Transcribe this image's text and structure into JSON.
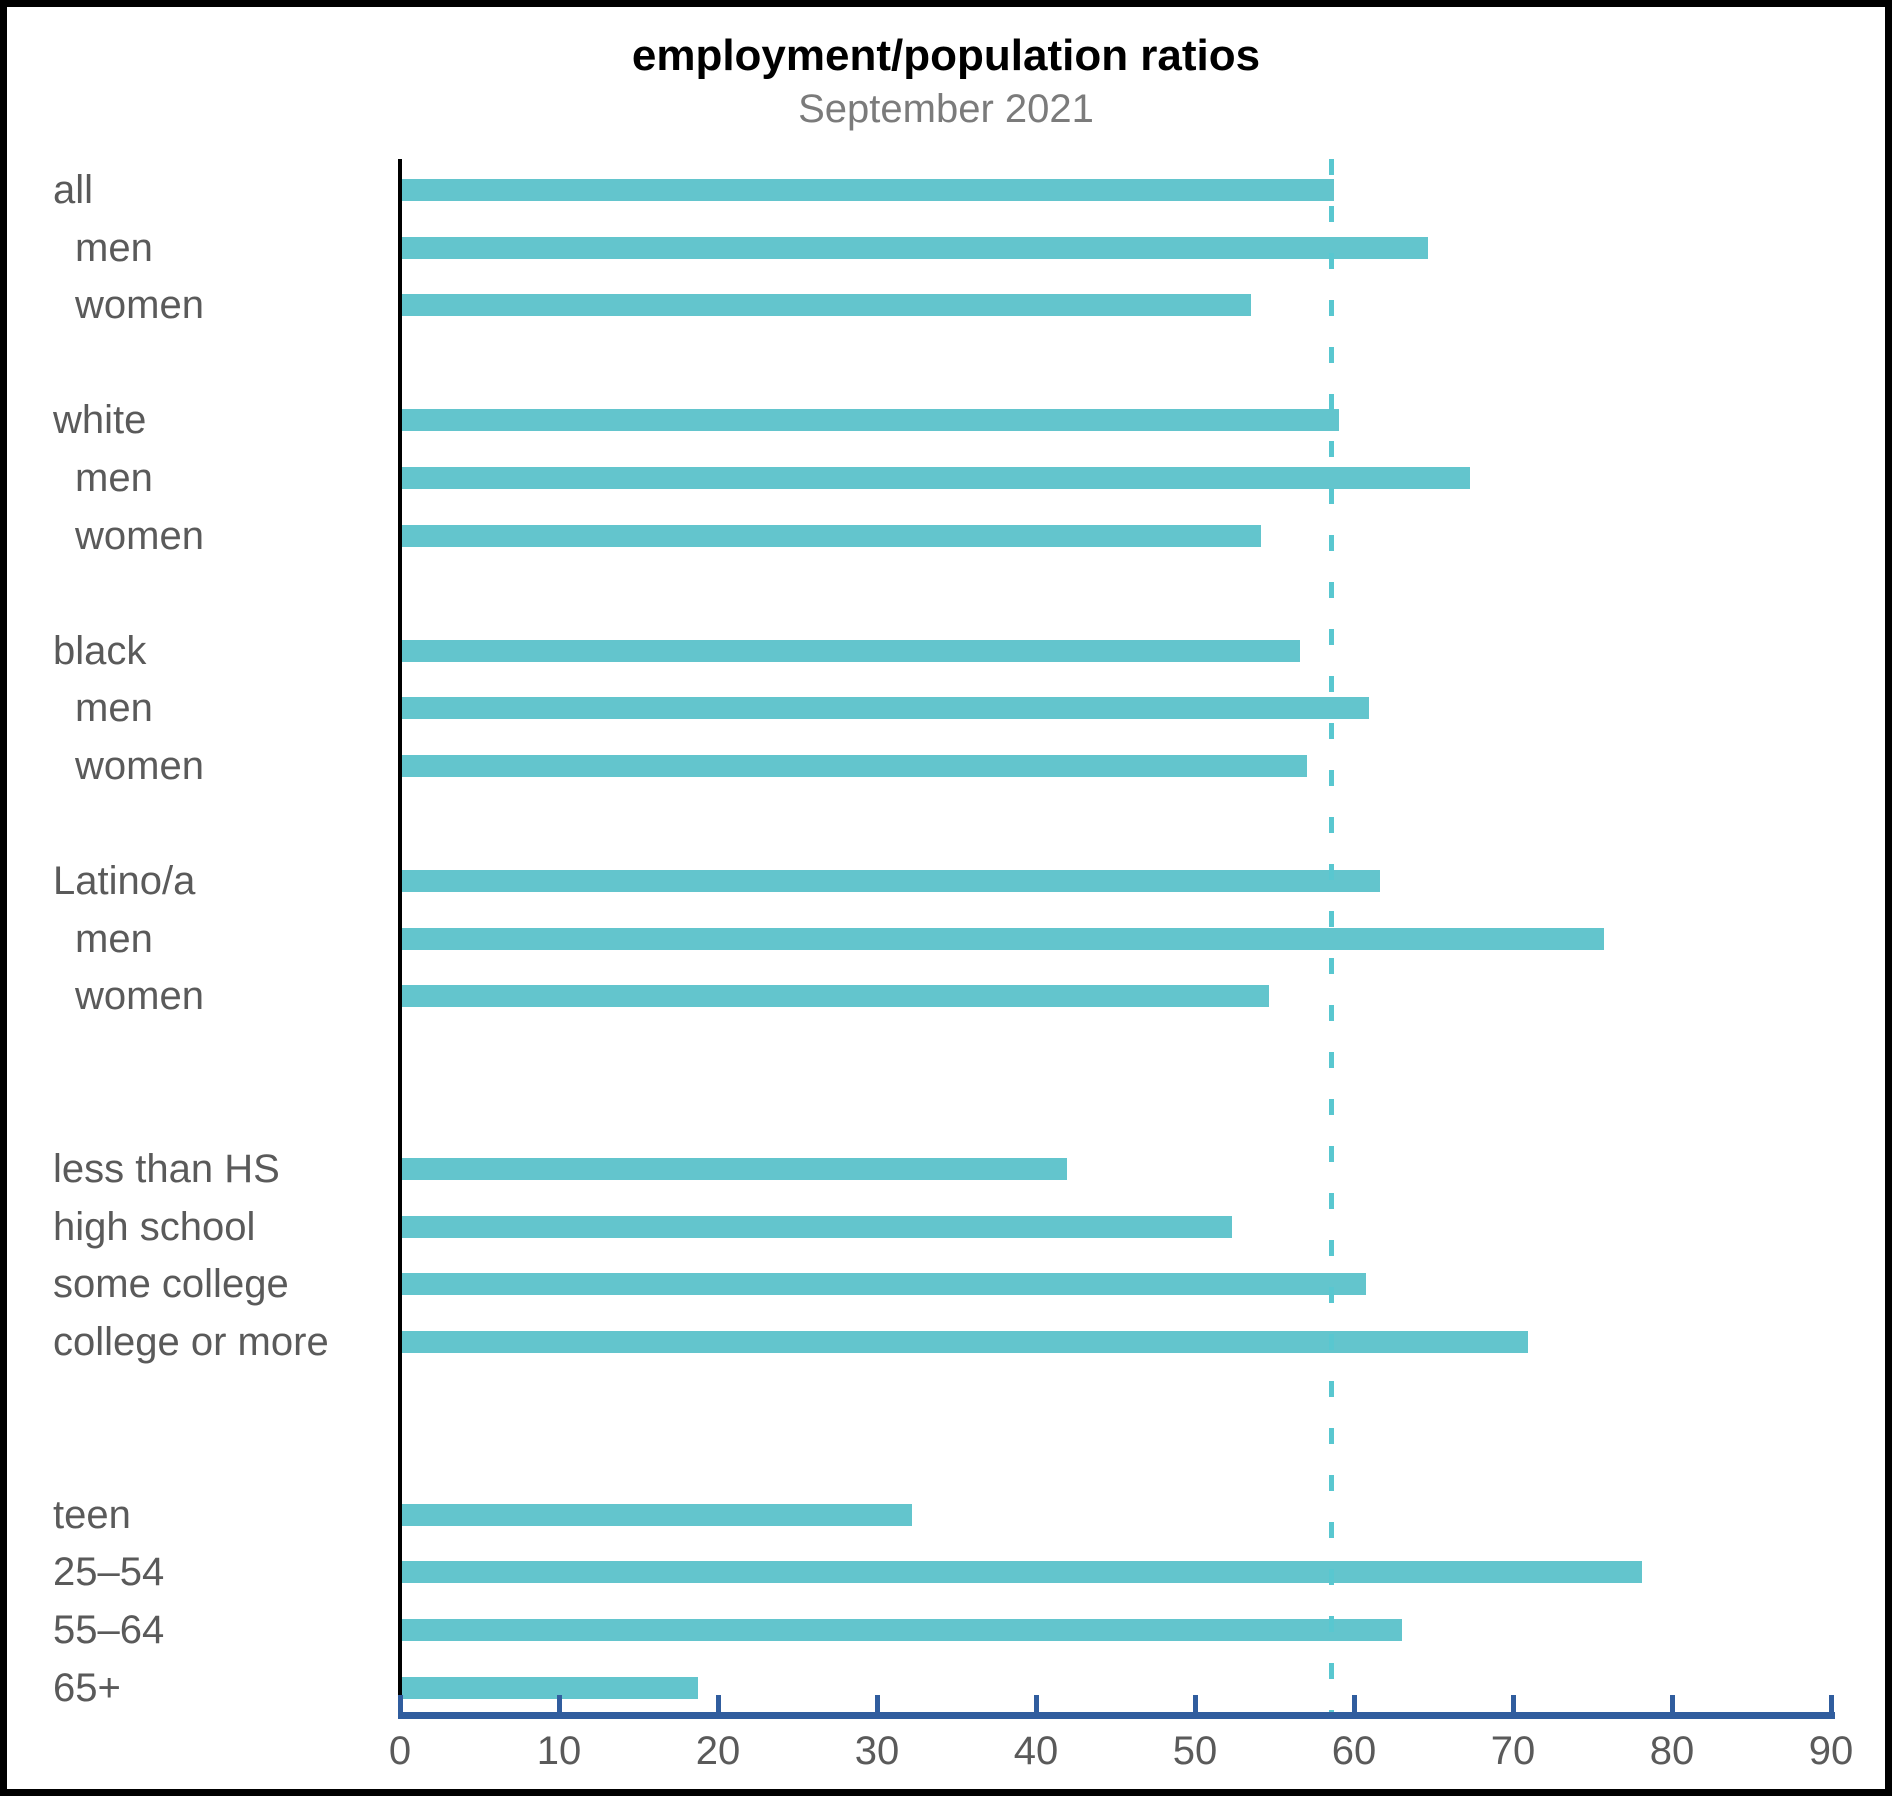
{
  "chart_data": {
    "type": "bar",
    "orientation": "horizontal",
    "title": "employment/population ratios",
    "subtitle": "September 2021",
    "xlabel": "",
    "ylabel": "",
    "xlim": [
      0,
      90
    ],
    "x_ticks": [
      0,
      10,
      20,
      30,
      40,
      50,
      60,
      70,
      80,
      90
    ],
    "grid": false,
    "legend": "none",
    "bar_color": "#63c5cd",
    "axis_color": "#305d9e",
    "label_color": "#5a5a5a",
    "title_color": "#000000",
    "subtitle_color": "#7b7b7b",
    "reference_line": {
      "value": 58.6,
      "style": "dashed",
      "color": "#59c7d0"
    },
    "rows": [
      {
        "label": "all",
        "value": 58.6,
        "indent": false,
        "slot": 0
      },
      {
        "label": "men",
        "value": 64.5,
        "indent": true,
        "slot": 1
      },
      {
        "label": "women",
        "value": 53.4,
        "indent": true,
        "slot": 2
      },
      {
        "label": "white",
        "value": 58.9,
        "indent": false,
        "slot": 4
      },
      {
        "label": "men",
        "value": 67.2,
        "indent": true,
        "slot": 5
      },
      {
        "label": "women",
        "value": 54.0,
        "indent": true,
        "slot": 6
      },
      {
        "label": "black",
        "value": 56.5,
        "indent": false,
        "slot": 8
      },
      {
        "label": "men",
        "value": 60.8,
        "indent": true,
        "slot": 9
      },
      {
        "label": "women",
        "value": 56.9,
        "indent": true,
        "slot": 10
      },
      {
        "label": "Latino/a",
        "value": 61.5,
        "indent": false,
        "slot": 12
      },
      {
        "label": "men",
        "value": 75.6,
        "indent": true,
        "slot": 13
      },
      {
        "label": "women",
        "value": 54.5,
        "indent": true,
        "slot": 14
      },
      {
        "label": "less than HS",
        "value": 41.8,
        "indent": false,
        "slot": 17
      },
      {
        "label": "high school",
        "value": 52.2,
        "indent": false,
        "slot": 18
      },
      {
        "label": "some college",
        "value": 60.6,
        "indent": false,
        "slot": 19
      },
      {
        "label": "college or more",
        "value": 70.8,
        "indent": false,
        "slot": 20
      },
      {
        "label": "teen",
        "value": 32.1,
        "indent": false,
        "slot": 23
      },
      {
        "label": "25–54",
        "value": 78.0,
        "indent": false,
        "slot": 24
      },
      {
        "label": "55–64",
        "value": 62.9,
        "indent": false,
        "slot": 25
      },
      {
        "label": "65+",
        "value": 18.6,
        "indent": false,
        "slot": 26
      }
    ]
  }
}
